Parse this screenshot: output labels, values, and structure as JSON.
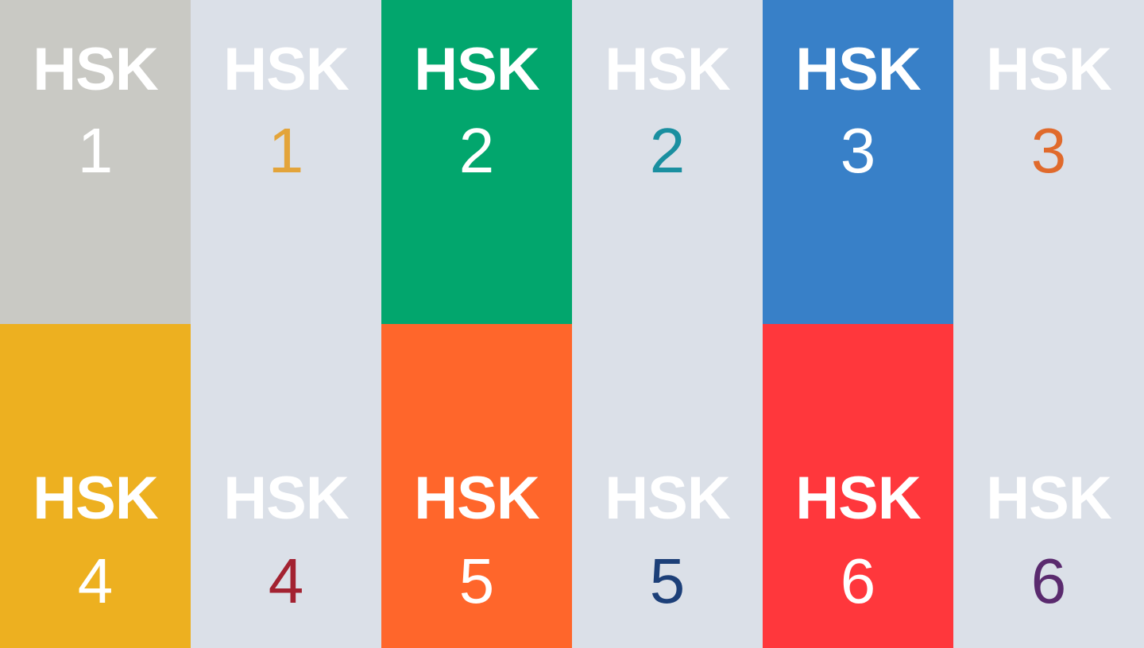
{
  "tiles": [
    {
      "label": "HSK",
      "number": "1",
      "bg": "#c9c9c4",
      "num_color": "#ffffff"
    },
    {
      "label": "HSK",
      "number": "1",
      "bg": "#dbe0e8",
      "num_color": "#e3a43a"
    },
    {
      "label": "HSK",
      "number": "2",
      "bg": "#02a66d",
      "num_color": "#ffffff"
    },
    {
      "label": "HSK",
      "number": "2",
      "bg": "#dbe0e8",
      "num_color": "#1a8fa0"
    },
    {
      "label": "HSK",
      "number": "3",
      "bg": "#3880c8",
      "num_color": "#ffffff"
    },
    {
      "label": "HSK",
      "number": "3",
      "bg": "#dbe0e8",
      "num_color": "#e06a2c"
    },
    {
      "label": "HSK",
      "number": "4",
      "bg": "#edb020",
      "num_color": "#ffffff"
    },
    {
      "label": "HSK",
      "number": "4",
      "bg": "#dbe0e8",
      "num_color": "#a32231"
    },
    {
      "label": "HSK",
      "number": "5",
      "bg": "#ff662b",
      "num_color": "#ffffff"
    },
    {
      "label": "HSK",
      "number": "5",
      "bg": "#dbe0e8",
      "num_color": "#1c3f78"
    },
    {
      "label": "HSK",
      "number": "6",
      "bg": "#ff373c",
      "num_color": "#ffffff"
    },
    {
      "label": "HSK",
      "number": "6",
      "bg": "#dbe0e8",
      "num_color": "#5a2a6e"
    }
  ]
}
